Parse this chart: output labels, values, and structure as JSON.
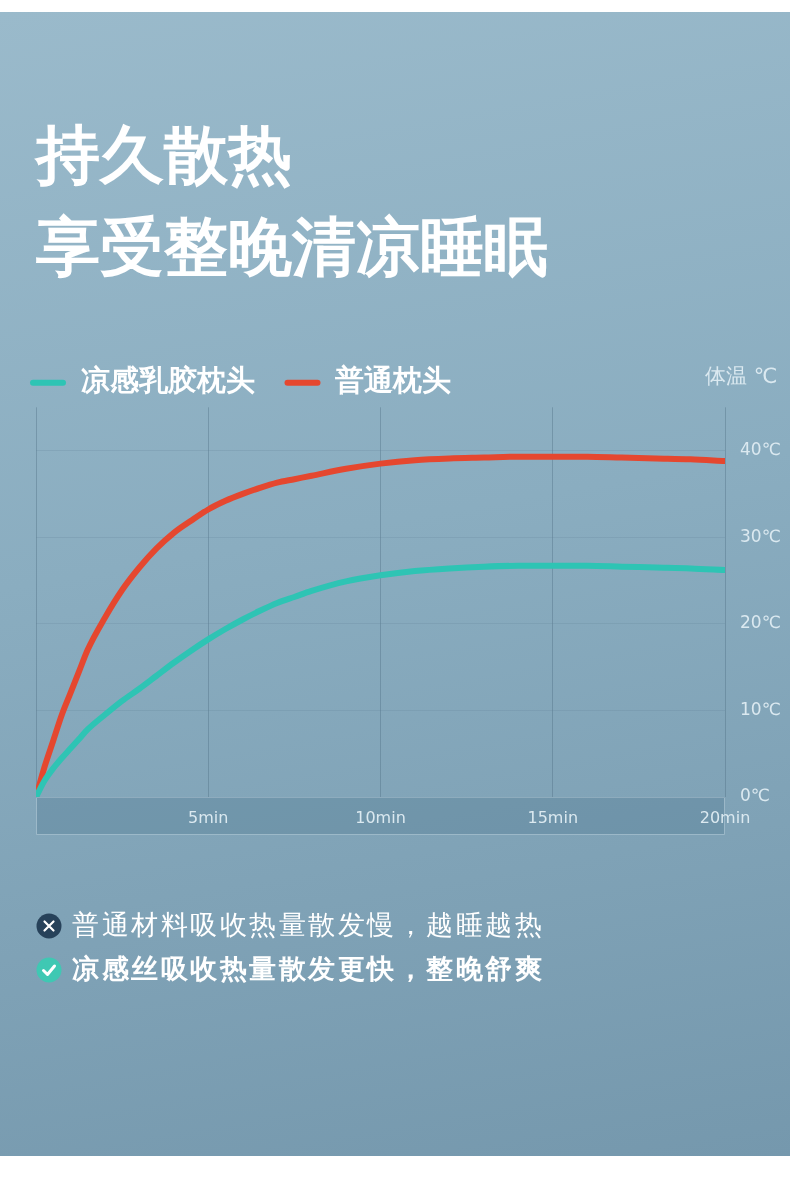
{
  "chart_data": {
    "type": "line",
    "title": "持久散热",
    "subtitle": "享受整晚清凉睡眠",
    "ylabel": "体温 ℃",
    "x": [
      0,
      0.25,
      0.5,
      0.75,
      1,
      1.25,
      1.5,
      2,
      2.5,
      3,
      3.5,
      4,
      4.5,
      5,
      5.5,
      6,
      6.5,
      7,
      7.5,
      8,
      9,
      10,
      11,
      12,
      13,
      14,
      15,
      16,
      17,
      18,
      19,
      20
    ],
    "series": [
      {
        "name": "凉感乳胶枕头",
        "color": "#2ec4b4",
        "values": [
          0,
          1.9,
          3.3,
          4.5,
          5.6,
          6.7,
          7.8,
          9.5,
          11.1,
          12.5,
          14,
          15.5,
          16.9,
          18.2,
          19.4,
          20.5,
          21.5,
          22.4,
          23.1,
          23.8,
          24.9,
          25.6,
          26.1,
          26.4,
          26.6,
          26.7,
          26.7,
          26.7,
          26.6,
          26.5,
          26.4,
          26.2
        ]
      },
      {
        "name": "普通枕头",
        "color": "#e5472f",
        "values": [
          0,
          3.5,
          6.5,
          9.5,
          12,
          14.5,
          17,
          20.7,
          23.9,
          26.5,
          28.7,
          30.5,
          31.9,
          33.2,
          34.2,
          35,
          35.7,
          36.3,
          36.7,
          37.1,
          37.9,
          38.5,
          38.9,
          39.1,
          39.2,
          39.3,
          39.3,
          39.3,
          39.2,
          39.1,
          39,
          38.8
        ]
      }
    ],
    "xlim": [
      0,
      20
    ],
    "xticks": [
      {
        "value": 0,
        "label": null
      },
      {
        "value": 5,
        "label": "5min"
      },
      {
        "value": 10,
        "label": "10min"
      },
      {
        "value": 15,
        "label": "15min"
      },
      {
        "value": 20,
        "label": "20min"
      }
    ],
    "ylim": [
      0,
      45
    ],
    "yticks": [
      {
        "value": 0,
        "label": "0℃"
      },
      {
        "value": 10,
        "label": "10℃"
      },
      {
        "value": 20,
        "label": "20℃"
      },
      {
        "value": 30,
        "label": "30℃"
      },
      {
        "value": 40,
        "label": "40℃"
      }
    ],
    "grid": true,
    "legend": "top left",
    "marker": "none",
    "line_style": "solid",
    "annotations": [
      "普通材料吸收热量散发慢，越睡越热",
      "凉感丝吸收热量散发更快，整晚舒爽"
    ]
  }
}
